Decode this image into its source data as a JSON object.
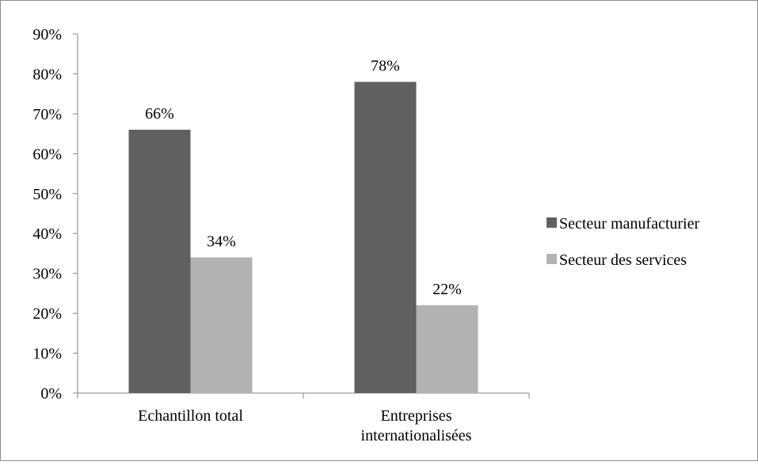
{
  "chart_data": {
    "type": "bar",
    "title": "",
    "xlabel": "",
    "ylabel": "",
    "categories": [
      "Echantillon total",
      "Entreprises internationalisées"
    ],
    "category_label_lines": [
      [
        "Echantillon total"
      ],
      [
        "Entreprises",
        "internationalisées"
      ]
    ],
    "series": [
      {
        "name": "Secteur manufacturier",
        "values": [
          66,
          78
        ],
        "labels": [
          "66%",
          "78%"
        ],
        "color": "#606060"
      },
      {
        "name": "Secteur des services",
        "values": [
          34,
          22
        ],
        "labels": [
          "34%",
          "22%"
        ],
        "color": "#b2b2b2"
      }
    ],
    "ylim": [
      0,
      90
    ],
    "y_ticks": [
      0,
      10,
      20,
      30,
      40,
      50,
      60,
      70,
      80,
      90
    ],
    "y_tick_labels": [
      "0%",
      "10%",
      "20%",
      "30%",
      "40%",
      "50%",
      "60%",
      "70%",
      "80%",
      "90%"
    ],
    "grid": false,
    "legend_position": "right"
  }
}
